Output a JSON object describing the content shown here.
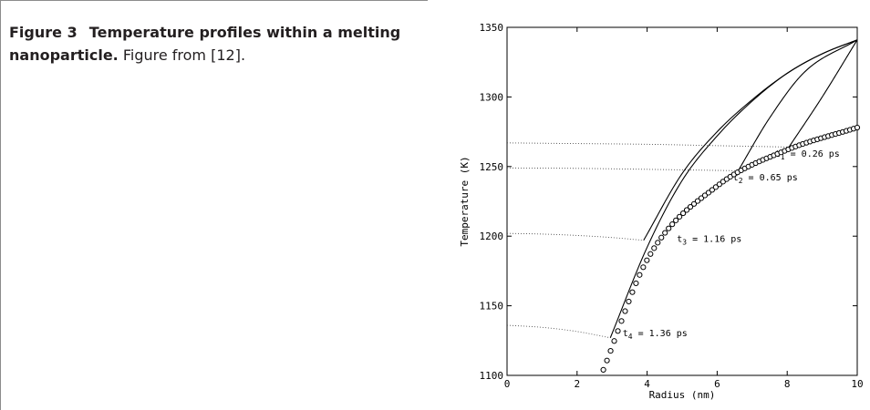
{
  "caption": {
    "label": "Figure 3",
    "title": "Temperature profiles within a melting nanoparticle.",
    "note": "Figure from [12]."
  },
  "chart_data": {
    "type": "line",
    "xlabel": "Radius (nm)",
    "ylabel": "Temperature (K)",
    "xlim": [
      0,
      10
    ],
    "ylim": [
      1100,
      1350
    ],
    "x_ticks": [
      0,
      2,
      4,
      6,
      8,
      10
    ],
    "y_ticks": [
      1100,
      1150,
      1200,
      1250,
      1300,
      1350
    ],
    "grid": false,
    "interface_melting_temperature": {
      "marker": "circle",
      "x_start": 2.75,
      "x_end": 10,
      "description_values": [
        [
          2.75,
          1104
        ],
        [
          4,
          1183
        ],
        [
          6,
          1236
        ],
        [
          8,
          1262
        ],
        [
          10,
          1278
        ]
      ]
    },
    "series": [
      {
        "label": "t",
        "sub": "1",
        "rest": " = 0.26 ps",
        "label_pos": [
          7.65,
          1257
        ],
        "front_radius": 8.05,
        "liquid_temperature": [
          [
            0,
            1267
          ],
          [
            2,
            1266.5
          ],
          [
            4,
            1266
          ],
          [
            6,
            1265
          ],
          [
            8.05,
            1264
          ]
        ],
        "solid_temperature": [
          [
            8.05,
            1264
          ],
          [
            9,
            1300
          ],
          [
            10,
            1341
          ]
        ]
      },
      {
        "label": "t",
        "sub": "2",
        "rest": " = 0.65 ps",
        "label_pos": [
          6.45,
          1240
        ],
        "front_radius": 6.6,
        "liquid_temperature": [
          [
            0,
            1249
          ],
          [
            2,
            1248.7
          ],
          [
            4,
            1248
          ],
          [
            6.6,
            1247
          ]
        ],
        "solid_temperature": [
          [
            6.6,
            1247
          ],
          [
            7.5,
            1285
          ],
          [
            8.5,
            1318
          ],
          [
            10,
            1341
          ]
        ]
      },
      {
        "label": "t",
        "sub": "3",
        "rest": " = 1.16 ps",
        "label_pos": [
          4.85,
          1196
        ],
        "front_radius": 3.9,
        "liquid_temperature": [
          [
            0,
            1202
          ],
          [
            1,
            1201.5
          ],
          [
            2,
            1200.5
          ],
          [
            3,
            1199
          ],
          [
            3.9,
            1197
          ]
        ],
        "solid_temperature": [
          [
            3.9,
            1197
          ],
          [
            5,
            1245
          ],
          [
            6,
            1275
          ],
          [
            7,
            1298
          ],
          [
            8,
            1317
          ],
          [
            9,
            1331
          ],
          [
            10,
            1341
          ]
        ]
      },
      {
        "label": "t",
        "sub": "4",
        "rest": " = 1.36 ps",
        "label_pos": [
          3.3,
          1128
        ],
        "front_radius": 2.95,
        "liquid_temperature": [
          [
            0,
            1136
          ],
          [
            1,
            1134.5
          ],
          [
            2,
            1131.5
          ],
          [
            2.95,
            1127
          ]
        ],
        "solid_temperature": [
          [
            2.95,
            1127
          ],
          [
            4,
            1192
          ],
          [
            5,
            1240
          ],
          [
            6,
            1272
          ],
          [
            7,
            1297
          ],
          [
            8,
            1317
          ],
          [
            9,
            1331
          ],
          [
            10,
            1341
          ]
        ]
      }
    ]
  }
}
